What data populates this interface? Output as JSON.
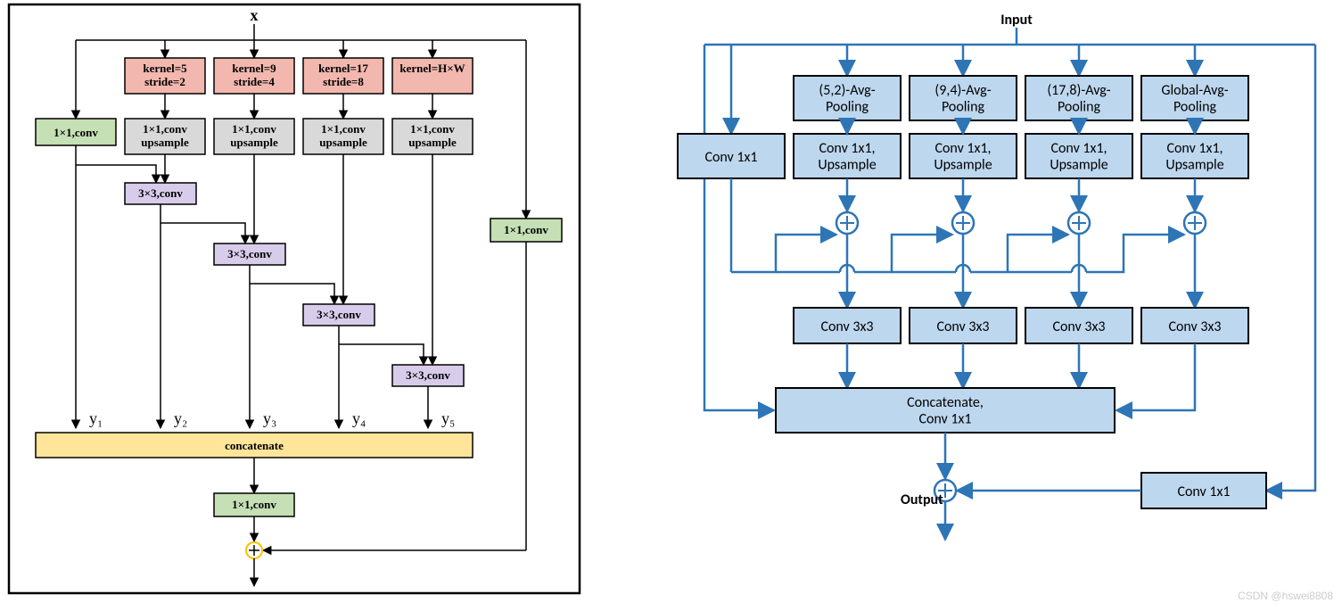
{
  "watermark": "CSDN @hswei8808",
  "left": {
    "colors": {
      "pink": "#f2b7ae",
      "gray": "#d9d9d9",
      "green": "#c5e0b4",
      "purple": "#d8cceb",
      "yellow": "#ffe599",
      "plus_ring": "#ffc000"
    },
    "input_label": "x",
    "kernel_boxes": [
      "kernel=5\nstride=2",
      "kernel=9\nstride=4",
      "kernel=17\nstride=8",
      "kernel=H×W"
    ],
    "conv1x1_up": "1×1,conv\nupsample",
    "conv1x1": "1×1,conv",
    "conv3x3": "3×3,conv",
    "concat": "concatenate",
    "y_labels": [
      "y₁",
      "y₂",
      "y₃",
      "y₄",
      "y₅"
    ]
  },
  "right": {
    "colors": {
      "blue_fill": "#bdd7ee",
      "blue_line": "#2e75b6",
      "black": "#000000"
    },
    "input_label": "Input",
    "output_label": "Output",
    "pooling": [
      "(5,2)-Avg-\nPooling",
      "(9,4)-Avg-\nPooling",
      "(17,8)-Avg-\nPooling",
      "Global-Avg-\nPooling"
    ],
    "conv1x1": "Conv 1x1",
    "conv1x1up": "Conv 1x1,\nUpsample",
    "conv3x3": "Conv 3x3",
    "concat": "Concatenate,\nConv 1x1"
  }
}
